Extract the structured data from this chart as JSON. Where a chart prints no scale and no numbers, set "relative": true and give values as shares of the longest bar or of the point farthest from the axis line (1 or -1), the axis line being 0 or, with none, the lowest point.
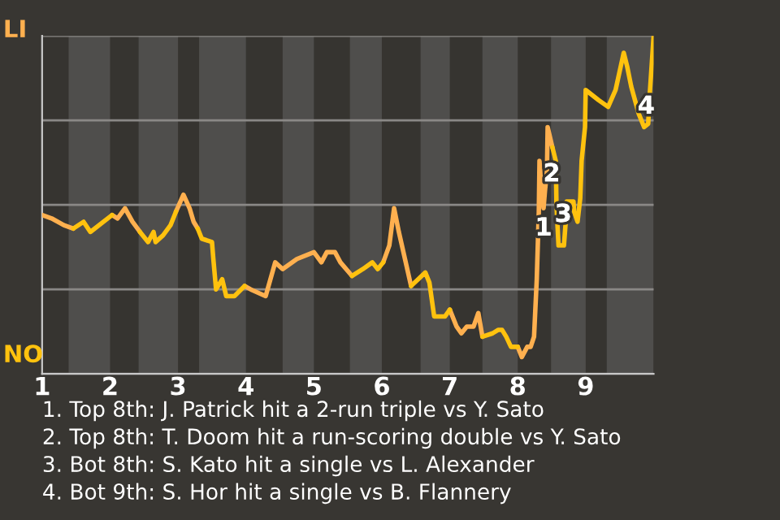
{
  "chart_data": {
    "type": "line",
    "relative": true,
    "xlim": [
      1,
      10
    ],
    "xticks": [
      1,
      2,
      3,
      4,
      5,
      6,
      7,
      8,
      9
    ],
    "grid": "y",
    "legend": false,
    "marker": "none",
    "line_style": "solid",
    "bands": [
      {
        "axis": "x",
        "from": 1.39,
        "to": 2,
        "color": "#4f4e4c"
      },
      {
        "axis": "x",
        "from": 2.42,
        "to": 3,
        "color": "#4f4e4c"
      },
      {
        "axis": "x",
        "from": 3.31,
        "to": 4,
        "color": "#4f4e4c"
      },
      {
        "axis": "x",
        "from": 4.54,
        "to": 5,
        "color": "#4f4e4c"
      },
      {
        "axis": "x",
        "from": 5.53,
        "to": 6,
        "color": "#4f4e4c"
      },
      {
        "axis": "x",
        "from": 6.57,
        "to": 7,
        "color": "#4f4e4c"
      },
      {
        "axis": "x",
        "from": 7.48,
        "to": 8,
        "color": "#4f4e4c"
      },
      {
        "axis": "x",
        "from": 8.49,
        "to": 9,
        "color": "#4f4e4c"
      },
      {
        "axis": "x",
        "from": 9.31,
        "to": 10,
        "color": "#4f4e4c"
      }
    ],
    "series": [
      {
        "color": "#ffb04f",
        "x": [
          1.0,
          1.14,
          1.32,
          1.46,
          1.71,
          2.03,
          2.11,
          2.22,
          2.33,
          2.44,
          2.67,
          2.97,
          3.08,
          3.17,
          3.23,
          3.29,
          3.65,
          3.98,
          4.07,
          4.29,
          4.43,
          4.54,
          4.75,
          5.0,
          5.11,
          5.19,
          5.31,
          5.39,
          5.56,
          5.72,
          6.02,
          6.11,
          6.18,
          6.25,
          6.34,
          6.43,
          6.7,
          7.0,
          7.1,
          7.17,
          7.25,
          7.35,
          7.42,
          7.48,
          7.77,
          8.0,
          8.06,
          8.14,
          8.19,
          8.24,
          8.28,
          8.31,
          8.32,
          8.35,
          8.38,
          8.4,
          8.43,
          8.44,
          8.51
        ],
        "values": [
          0.47,
          0.46,
          0.44,
          0.43,
          null,
          0.47,
          0.46,
          0.49,
          0.45,
          0.42,
          null,
          0.48,
          0.53,
          0.49,
          0.45,
          0.43,
          null,
          0.26,
          0.25,
          0.23,
          0.33,
          0.31,
          0.34,
          0.36,
          0.33,
          0.36,
          0.36,
          0.33,
          0.29,
          null,
          0.33,
          0.38,
          0.49,
          0.42,
          0.34,
          0.26,
          null,
          0.19,
          0.14,
          0.12,
          0.14,
          0.14,
          0.18,
          0.11,
          null,
          0.08,
          0.05,
          0.08,
          0.08,
          0.11,
          0.28,
          0.48,
          0.63,
          0.54,
          0.49,
          0.54,
          0.6,
          0.73,
          0.67
        ]
      },
      {
        "color": "#ffc20e",
        "x": [
          1.46,
          1.61,
          1.71,
          2.03,
          2.22,
          2.44,
          2.56,
          2.64,
          2.67,
          2.78,
          2.89,
          2.97,
          3.17,
          3.29,
          3.35,
          3.5,
          3.52,
          3.56,
          3.65,
          3.71,
          3.83,
          3.98,
          4.29,
          5.56,
          5.72,
          5.86,
          5.94,
          6.02,
          6.25,
          6.43,
          6.64,
          6.7,
          6.77,
          6.93,
          7.0,
          7.25,
          7.48,
          7.63,
          7.71,
          7.77,
          7.83,
          7.9,
          8.0,
          8.24,
          8.51,
          8.56,
          8.57,
          8.6,
          8.68,
          8.71,
          8.72,
          8.82,
          8.83,
          8.88,
          8.92,
          8.94,
          8.99,
          9.0,
          9.19,
          9.33,
          9.44,
          9.56,
          9.61,
          9.67,
          9.78,
          9.86,
          9.92,
          9.94,
          10.0
        ],
        "values": [
          0.43,
          0.45,
          0.42,
          0.47,
          null,
          0.42,
          0.39,
          0.42,
          0.39,
          0.41,
          0.44,
          0.48,
          null,
          0.43,
          0.4,
          0.39,
          0.34,
          0.25,
          0.28,
          0.23,
          0.23,
          0.26,
          null,
          0.29,
          0.31,
          0.33,
          0.31,
          0.33,
          null,
          0.26,
          0.3,
          0.27,
          0.17,
          0.17,
          0.19,
          null,
          0.11,
          0.12,
          0.13,
          0.13,
          0.11,
          0.08,
          0.08,
          null,
          0.67,
          0.63,
          0.5,
          0.38,
          0.38,
          0.46,
          0.51,
          0.51,
          0.48,
          0.45,
          0.52,
          0.63,
          0.73,
          0.84,
          0.81,
          0.79,
          0.84,
          0.95,
          0.91,
          0.85,
          0.77,
          0.73,
          0.74,
          0.82,
          1.0
        ]
      }
    ],
    "annotations": [
      "LI",
      "NO",
      {
        "text": "1",
        "x": 8.38,
        "y": 0.43
      },
      {
        "text": "2",
        "x": 8.5,
        "y": 0.59
      },
      {
        "text": "3",
        "x": 8.67,
        "y": 0.47
      },
      {
        "text": "4",
        "x": 9.89,
        "y": 0.79
      },
      "1. Top 8th: J. Patrick hit a 2-run triple vs Y. Sato",
      "2. Top 8th: T. Doom hit a run-scoring double vs Y. Sato",
      "3. Bot 8th: S. Kato hit a single vs L. Alexander",
      "4. Bot 9th: S. Hor hit a single vs B. Flannery"
    ]
  }
}
